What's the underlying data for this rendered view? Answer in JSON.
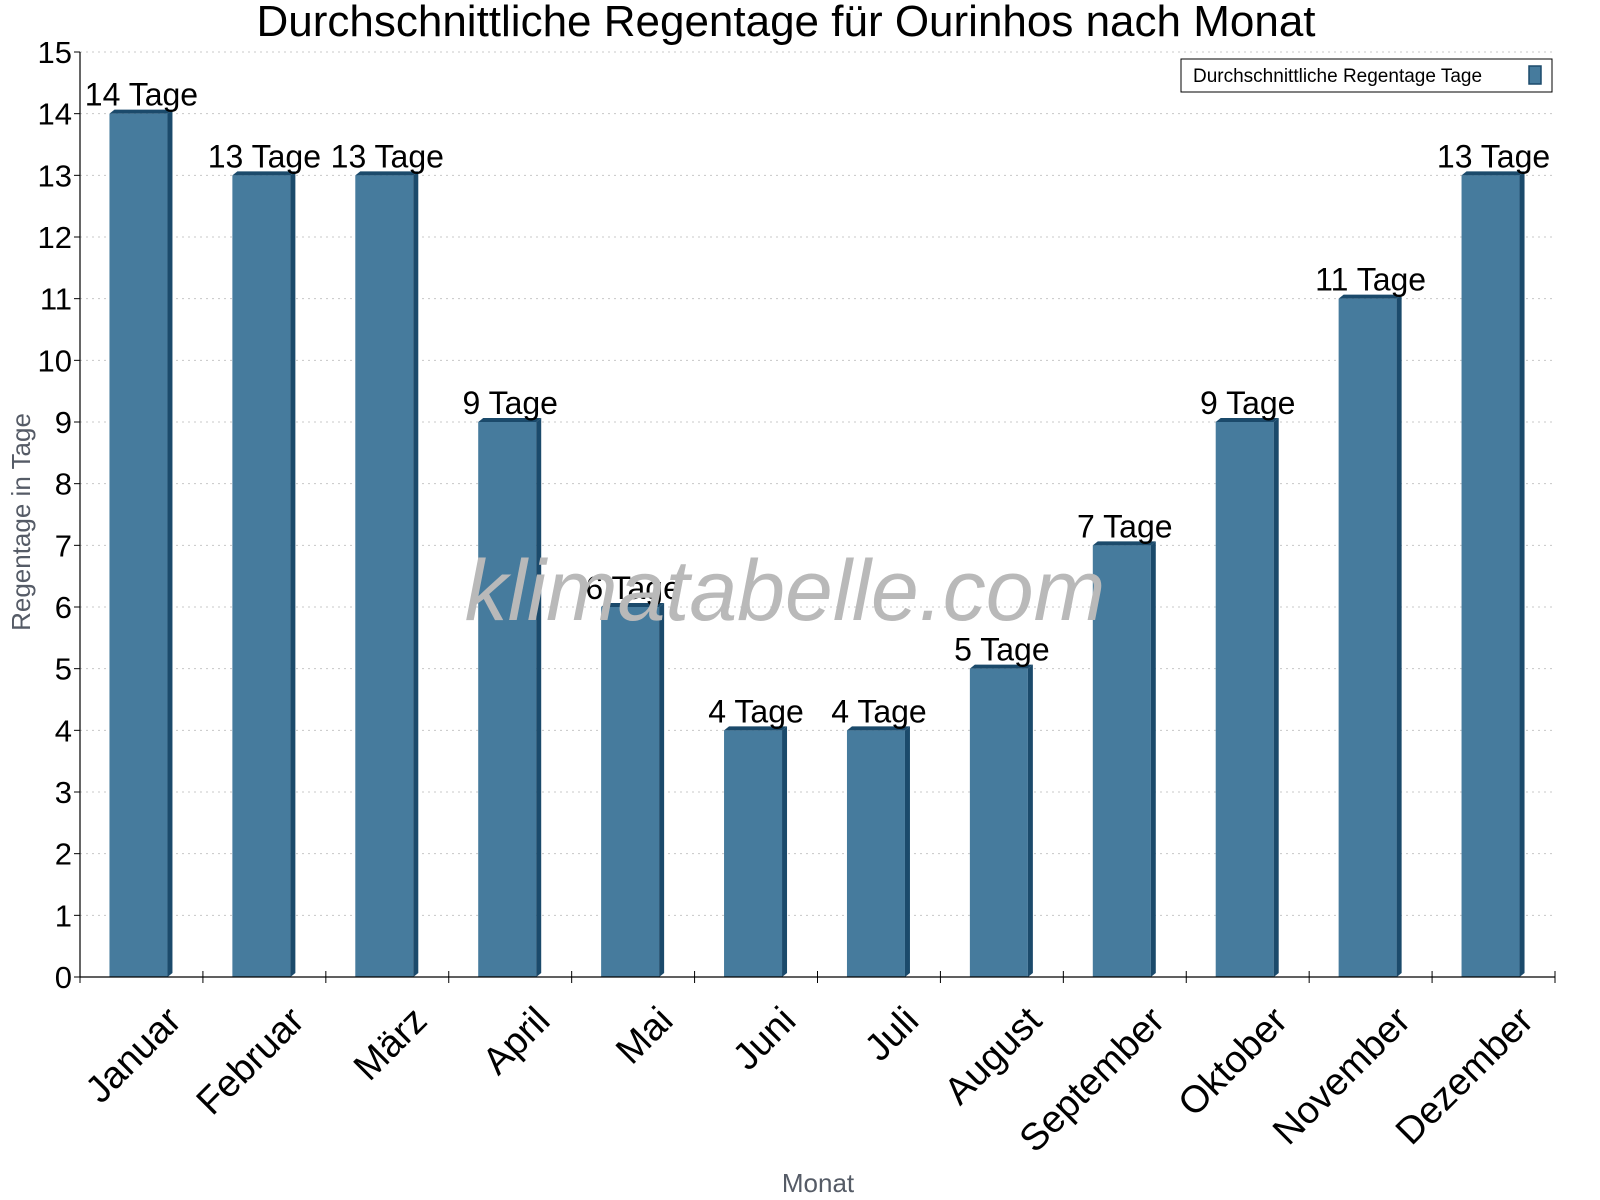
{
  "chart_data": {
    "type": "bar",
    "title": "Durchschnittliche Regentage für Ourinhos nach Monat",
    "xlabel": "Monat",
    "ylabel": "Regentage in Tage",
    "ylim": [
      0,
      15
    ],
    "yticks": [
      0,
      1,
      2,
      3,
      4,
      5,
      6,
      7,
      8,
      9,
      10,
      11,
      12,
      13,
      14,
      15
    ],
    "grid": true,
    "legend_position": "top-right",
    "categories": [
      "Januar",
      "Februar",
      "März",
      "April",
      "Mai",
      "Juni",
      "Juli",
      "August",
      "September",
      "Oktober",
      "November",
      "Dezember"
    ],
    "series": [
      {
        "name": "Durchschnittliche Regentage Tage",
        "color": "#467b9d",
        "values": [
          14,
          13,
          13,
          9,
          6,
          4,
          4,
          5,
          7,
          9,
          11,
          13
        ],
        "labels": [
          "14 Tage",
          "13 Tage",
          "13 Tage",
          "9 Tage",
          "6 Tage",
          "4 Tage",
          "4 Tage",
          "5 Tage",
          "7 Tage",
          "9 Tage",
          "11 Tage",
          "13 Tage"
        ]
      }
    ]
  },
  "watermark": "klimatabelle.com"
}
